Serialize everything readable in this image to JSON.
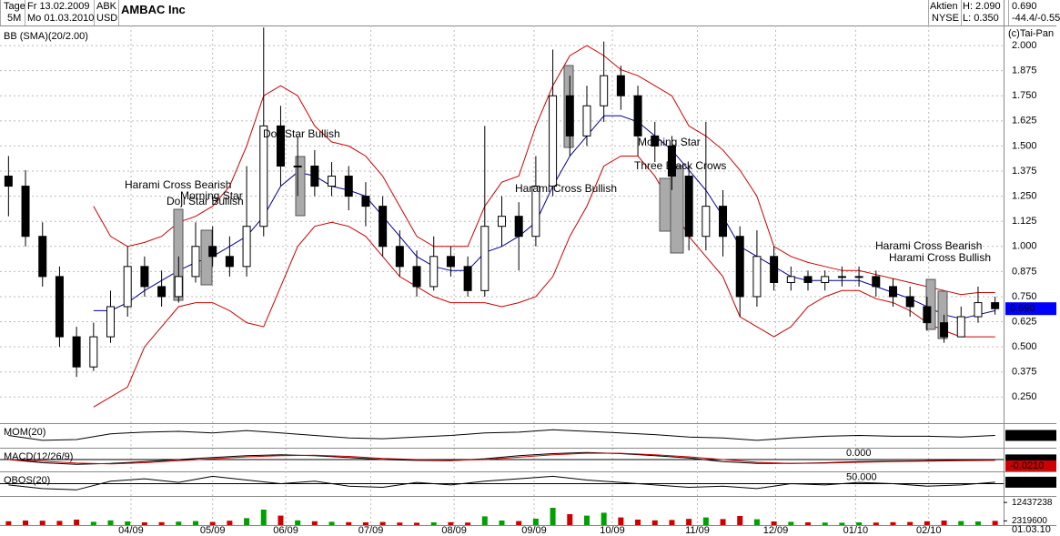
{
  "header": {
    "period": "Tage",
    "from": "Fr 13.02.2009",
    "symbol": "ABK",
    "name": "AMBAC Inc",
    "range": "5M",
    "to": "Mo 01.03.2010",
    "currency": "USD",
    "kind": "Aktien",
    "high": "H: 2.090",
    "last": "0.690",
    "exchange": "NYSE",
    "low": "L: 0.350",
    "change": "-44.4/-0.55",
    "copyright": "(c)Tai-Pan"
  },
  "chart_data": [
    {
      "type": "candlestick",
      "title": "BB (SMA)(20/2.00)",
      "xlim": [
        -0.5,
        58.5
      ],
      "ylim": [
        0.12,
        2.1
      ],
      "xticks": [
        {
          "value": 7.2,
          "label": "04/09"
        },
        {
          "value": 12,
          "label": "05/09"
        },
        {
          "value": 16.3,
          "label": "06/09"
        },
        {
          "value": 21.3,
          "label": "07/09"
        },
        {
          "value": 26.2,
          "label": "08/09"
        },
        {
          "value": 30.9,
          "label": "09/09"
        },
        {
          "value": 35.5,
          "label": "10/09"
        },
        {
          "value": 40.5,
          "label": "11/09"
        },
        {
          "value": 45.1,
          "label": "12/09"
        },
        {
          "value": 49.8,
          "label": "01/10"
        },
        {
          "value": 54.1,
          "label": "02/10"
        }
      ],
      "x_end_label": "01.03.10",
      "yticks": [
        {
          "value": 0.25,
          "label": "0.250"
        },
        {
          "value": 0.375,
          "label": "0.375"
        },
        {
          "value": 0.5,
          "label": "0.500"
        },
        {
          "value": 0.625,
          "label": "0.625"
        },
        {
          "value": 0.75,
          "label": "0.750"
        },
        {
          "value": 0.875,
          "label": "0.875"
        },
        {
          "value": 1,
          "label": "1.000"
        },
        {
          "value": 1.125,
          "label": "1.125"
        },
        {
          "value": 1.25,
          "label": "1.250"
        },
        {
          "value": 1.375,
          "label": "1.375"
        },
        {
          "value": 1.5,
          "label": "1.500"
        },
        {
          "value": 1.625,
          "label": "1.625"
        },
        {
          "value": 1.75,
          "label": "1.750"
        },
        {
          "value": 1.875,
          "label": "1.875"
        },
        {
          "value": 2,
          "label": "2.000"
        }
      ],
      "grid": true,
      "open": [
        1.35,
        1.3,
        1.05,
        0.85,
        0.55,
        0.4,
        0.55,
        0.7,
        0.9,
        0.8,
        0.75,
        0.85,
        1.0,
        0.95,
        0.9,
        1.1,
        1.6,
        1.4,
        1.4,
        1.3,
        1.35,
        1.25,
        1.2,
        1.0,
        0.9,
        0.8,
        0.95,
        0.9,
        0.78,
        1.1,
        1.15,
        1.05,
        1.3,
        1.75,
        1.55,
        1.7,
        1.85,
        1.75,
        1.55,
        1.5,
        1.35,
        1.05,
        1.2,
        1.05,
        0.75,
        0.95,
        0.82,
        0.85,
        0.82,
        0.85,
        0.85,
        0.85,
        0.8,
        0.75,
        0.7,
        0.62,
        0.55,
        0.65,
        0.72
      ],
      "high": [
        1.45,
        1.38,
        1.12,
        0.9,
        0.6,
        0.62,
        0.78,
        1.0,
        0.95,
        0.88,
        0.95,
        1.12,
        1.1,
        1.05,
        1.4,
        2.09,
        1.7,
        1.55,
        1.48,
        1.42,
        1.4,
        1.32,
        1.25,
        1.08,
        0.98,
        1.05,
        1.0,
        0.95,
        1.6,
        1.25,
        1.22,
        1.45,
        1.98,
        1.85,
        1.8,
        2.02,
        1.9,
        1.8,
        1.62,
        1.55,
        1.4,
        1.62,
        1.28,
        1.1,
        1.08,
        1.0,
        0.9,
        0.88,
        0.88,
        0.9,
        0.9,
        0.88,
        0.84,
        0.8,
        0.75,
        0.66,
        0.7,
        0.8,
        0.75
      ],
      "low": [
        1.15,
        1.0,
        0.8,
        0.5,
        0.35,
        0.38,
        0.52,
        0.65,
        0.75,
        0.7,
        0.72,
        0.82,
        0.9,
        0.85,
        0.85,
        1.05,
        1.3,
        1.25,
        1.25,
        1.25,
        1.18,
        1.1,
        0.95,
        0.85,
        0.75,
        0.78,
        0.85,
        0.75,
        0.75,
        1.0,
        0.88,
        1.0,
        1.25,
        1.45,
        1.5,
        1.62,
        1.68,
        1.45,
        1.42,
        1.28,
        0.98,
        0.98,
        0.95,
        0.65,
        0.7,
        0.78,
        0.78,
        0.78,
        0.78,
        0.8,
        0.8,
        0.75,
        0.7,
        0.65,
        0.58,
        0.52,
        0.55,
        0.62,
        0.66
      ],
      "close": [
        1.3,
        1.05,
        0.85,
        0.55,
        0.4,
        0.55,
        0.7,
        0.9,
        0.8,
        0.75,
        0.85,
        1.0,
        0.95,
        0.9,
        1.1,
        1.6,
        1.4,
        1.4,
        1.3,
        1.35,
        1.25,
        1.2,
        1.0,
        0.9,
        0.8,
        0.95,
        0.9,
        0.78,
        1.1,
        1.15,
        1.05,
        1.3,
        1.75,
        1.55,
        1.7,
        1.85,
        1.75,
        1.55,
        1.5,
        1.35,
        1.05,
        1.2,
        1.05,
        0.75,
        0.95,
        0.82,
        0.85,
        0.82,
        0.85,
        0.85,
        0.85,
        0.8,
        0.75,
        0.7,
        0.62,
        0.55,
        0.65,
        0.72,
        0.69
      ],
      "last_value_label": "0.690",
      "up_color": "#ffffff",
      "down_color": "#000000",
      "label_color": "#0000ff",
      "series": [
        {
          "color": "#cc0000",
          "values": [
            null,
            null,
            null,
            null,
            null,
            1.2,
            1.05,
            1.0,
            1.02,
            1.05,
            1.12,
            1.15,
            1.2,
            1.3,
            1.5,
            1.75,
            1.8,
            1.75,
            1.6,
            1.52,
            1.5,
            1.45,
            1.35,
            1.2,
            1.05,
            1.0,
            1.0,
            1.0,
            1.2,
            1.32,
            1.35,
            1.6,
            1.8,
            1.95,
            2.0,
            1.95,
            1.88,
            1.85,
            1.8,
            1.75,
            1.6,
            1.55,
            1.48,
            1.38,
            1.25,
            1.0,
            0.95,
            0.92,
            0.9,
            0.88,
            0.88,
            0.86,
            0.84,
            0.82,
            0.8,
            0.78,
            0.76,
            0.77,
            0.77
          ]
        },
        {
          "color": "#000099",
          "values": [
            null,
            null,
            null,
            null,
            null,
            0.68,
            0.68,
            0.72,
            0.78,
            0.83,
            0.88,
            0.92,
            0.95,
            1.0,
            1.05,
            1.15,
            1.3,
            1.37,
            1.35,
            1.3,
            1.28,
            1.25,
            1.15,
            1.05,
            0.95,
            0.9,
            0.88,
            0.88,
            0.97,
            1.0,
            1.05,
            1.12,
            1.3,
            1.45,
            1.55,
            1.65,
            1.65,
            1.62,
            1.55,
            1.48,
            1.38,
            1.28,
            1.15,
            1.0,
            0.95,
            0.9,
            0.85,
            0.83,
            0.83,
            0.83,
            0.83,
            0.8,
            0.77,
            0.74,
            0.7,
            0.66,
            0.64,
            0.66,
            0.68
          ]
        },
        {
          "color": "#cc0000",
          "values": [
            null,
            null,
            null,
            null,
            null,
            0.2,
            0.25,
            0.3,
            0.5,
            0.6,
            0.7,
            0.72,
            0.72,
            0.68,
            0.62,
            0.6,
            0.8,
            1.0,
            1.1,
            1.12,
            1.1,
            1.05,
            0.95,
            0.85,
            0.8,
            0.75,
            0.72,
            0.72,
            0.72,
            0.7,
            0.72,
            0.75,
            0.85,
            1.05,
            1.2,
            1.4,
            1.45,
            1.45,
            1.35,
            1.2,
            1.05,
            0.95,
            0.85,
            0.65,
            0.6,
            0.55,
            0.6,
            0.7,
            0.75,
            0.78,
            0.78,
            0.74,
            0.72,
            0.68,
            0.62,
            0.58,
            0.55,
            0.55,
            0.55
          ]
        }
      ],
      "annotations": [
        "Harami Cross Bearish",
        "Doji Star Bullish",
        "Morning Star",
        "Doji Star Bullish",
        "Harami Cross Bullish",
        "Morning Star",
        "Three Black Crows",
        "Harami Cross Bearish",
        "Harami Cross Bullish"
      ]
    },
    {
      "type": "line",
      "title": "MOM(20)",
      "xlim": [
        -0.5,
        58.5
      ],
      "ylim": [
        -1.5,
        1.5
      ],
      "x": [
        0,
        2,
        4,
        6,
        8,
        10,
        12,
        14,
        16,
        18,
        20,
        22,
        24,
        26,
        28,
        30,
        32,
        34,
        36,
        38,
        40,
        42,
        44,
        46,
        48,
        50,
        52,
        54,
        56,
        58
      ],
      "series": [
        {
          "color": "#000000",
          "values": [
            0.0,
            -0.6,
            -0.5,
            0.2,
            0.4,
            0.5,
            0.3,
            0.6,
            0.3,
            0.0,
            -0.3,
            -0.4,
            -0.2,
            0.0,
            0.3,
            0.4,
            0.7,
            0.5,
            0.3,
            0.1,
            -0.2,
            -0.3,
            -0.6,
            -0.3,
            -0.1,
            0.0,
            -0.1,
            -0.1,
            -0.2,
            0.0
          ],
          "last_value_label": "0.0000",
          "label_color": "#000000"
        }
      ]
    },
    {
      "type": "line",
      "title": "MACD(12/26/9)",
      "xlim": [
        -0.5,
        58.5
      ],
      "ylim": [
        -0.3,
        0.3
      ],
      "yticks": [
        {
          "value": 0,
          "label": "0.000"
        }
      ],
      "x": [
        0,
        2,
        4,
        6,
        8,
        10,
        12,
        14,
        16,
        18,
        20,
        22,
        24,
        26,
        28,
        30,
        32,
        34,
        36,
        38,
        40,
        42,
        44,
        46,
        48,
        50,
        52,
        54,
        56,
        58
      ],
      "series": [
        {
          "color": "#000000",
          "values": [
            0.0,
            -0.08,
            -0.12,
            -0.1,
            -0.05,
            0.0,
            0.05,
            0.1,
            0.12,
            0.1,
            0.05,
            0.0,
            -0.02,
            -0.03,
            0.02,
            0.1,
            0.15,
            0.18,
            0.15,
            0.1,
            0.04,
            -0.05,
            -0.1,
            -0.1,
            -0.08,
            -0.05,
            -0.04,
            -0.03,
            -0.02,
            -0.0089
          ],
          "last_value_label": "-0.0089",
          "label_color": "#000000"
        },
        {
          "color": "#cc0000",
          "values": [
            0.0,
            -0.04,
            -0.09,
            -0.11,
            -0.08,
            -0.03,
            0.02,
            0.07,
            0.1,
            0.11,
            0.08,
            0.03,
            0.0,
            -0.02,
            0.0,
            0.06,
            0.12,
            0.16,
            0.16,
            0.12,
            0.07,
            0.0,
            -0.07,
            -0.1,
            -0.09,
            -0.07,
            -0.05,
            -0.04,
            -0.03,
            -0.021
          ],
          "last_value_label": "-0.0210",
          "label_color": "#cc0000"
        }
      ]
    },
    {
      "type": "line",
      "title": "OBOS(20)",
      "xlim": [
        -0.5,
        58.5
      ],
      "ylim": [
        0,
        100
      ],
      "yticks": [
        {
          "value": 50,
          "label": "50.000"
        }
      ],
      "x": [
        0,
        2,
        4,
        6,
        8,
        10,
        12,
        14,
        16,
        18,
        20,
        22,
        24,
        26,
        28,
        30,
        32,
        34,
        36,
        38,
        40,
        42,
        44,
        46,
        48,
        50,
        52,
        54,
        56,
        58
      ],
      "series": [
        {
          "color": "#000000",
          "values": [
            45,
            30,
            25,
            60,
            70,
            55,
            80,
            65,
            50,
            60,
            40,
            35,
            55,
            45,
            60,
            70,
            80,
            65,
            55,
            45,
            35,
            40,
            30,
            50,
            45,
            55,
            50,
            40,
            45,
            56
          ],
          "last_value_label": "56.000",
          "label_color": "#000000"
        }
      ]
    },
    {
      "type": "bar",
      "xlim": [
        -0.5,
        58.5
      ],
      "ylim": [
        0,
        16000000
      ],
      "yticks": [
        2319600,
        12437238
      ],
      "up_color": "#00a000",
      "down_color": "#cc0000",
      "values": [
        2100000,
        2500000,
        2400000,
        2300000,
        3000000,
        1800000,
        2600000,
        2000000,
        1500000,
        1600000,
        1900000,
        2200000,
        1700000,
        2400000,
        3800000,
        8500000,
        5200000,
        2600000,
        2100000,
        1800000,
        1600000,
        1500000,
        1700000,
        1400000,
        1300000,
        1500000,
        1600000,
        1400000,
        4800000,
        2500000,
        2200000,
        3500000,
        9500000,
        6000000,
        5200000,
        6800000,
        4200000,
        3000000,
        2600000,
        2800000,
        3400000,
        4200000,
        3300000,
        5000000,
        3200000,
        2000000,
        1800000,
        1500000,
        1400000,
        1300000,
        1500000,
        1400000,
        1600000,
        1700000,
        2100000,
        2500000,
        2200000,
        2000000,
        2319600
      ]
    }
  ]
}
